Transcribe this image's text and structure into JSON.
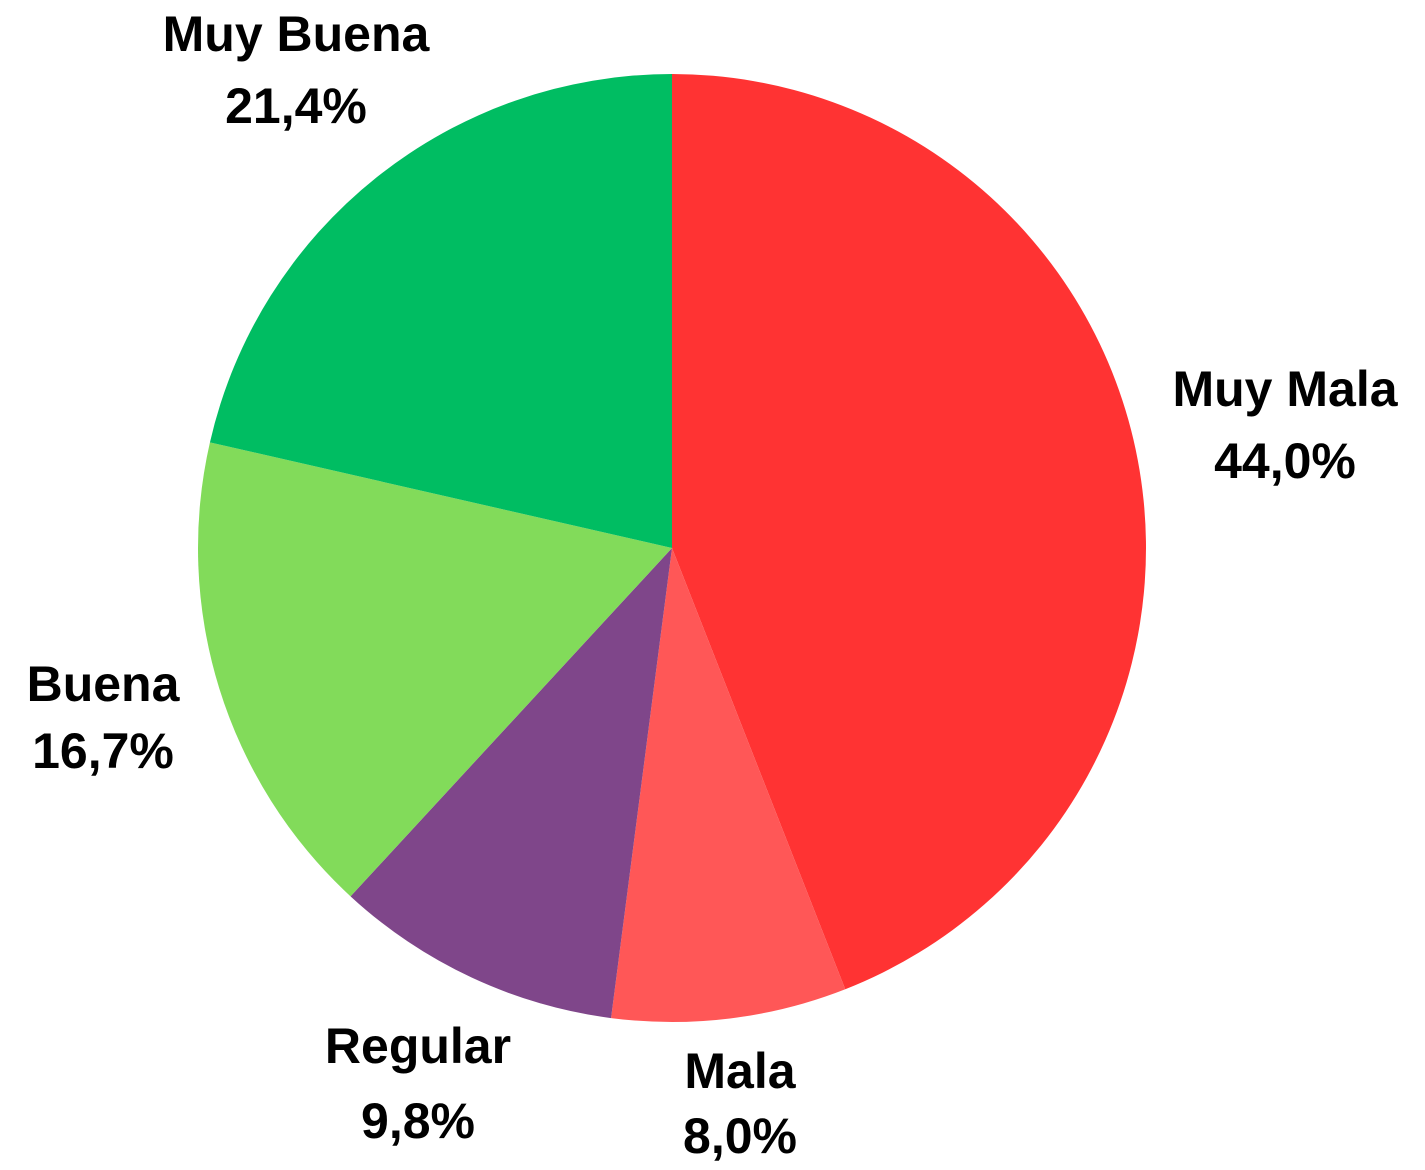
{
  "chart_data": {
    "type": "pie",
    "categories": [
      "Muy Mala",
      "Mala",
      "Regular",
      "Buena",
      "Muy Buena"
    ],
    "values": [
      44.0,
      8.0,
      9.8,
      16.7,
      21.4
    ],
    "value_labels": [
      "44,0%",
      "8,0%",
      "9,8%",
      "16,7%",
      "21,4%"
    ],
    "colors": [
      "#ff3333",
      "#ff5757",
      "#7f468a",
      "#82db5a",
      "#00bd62"
    ]
  }
}
